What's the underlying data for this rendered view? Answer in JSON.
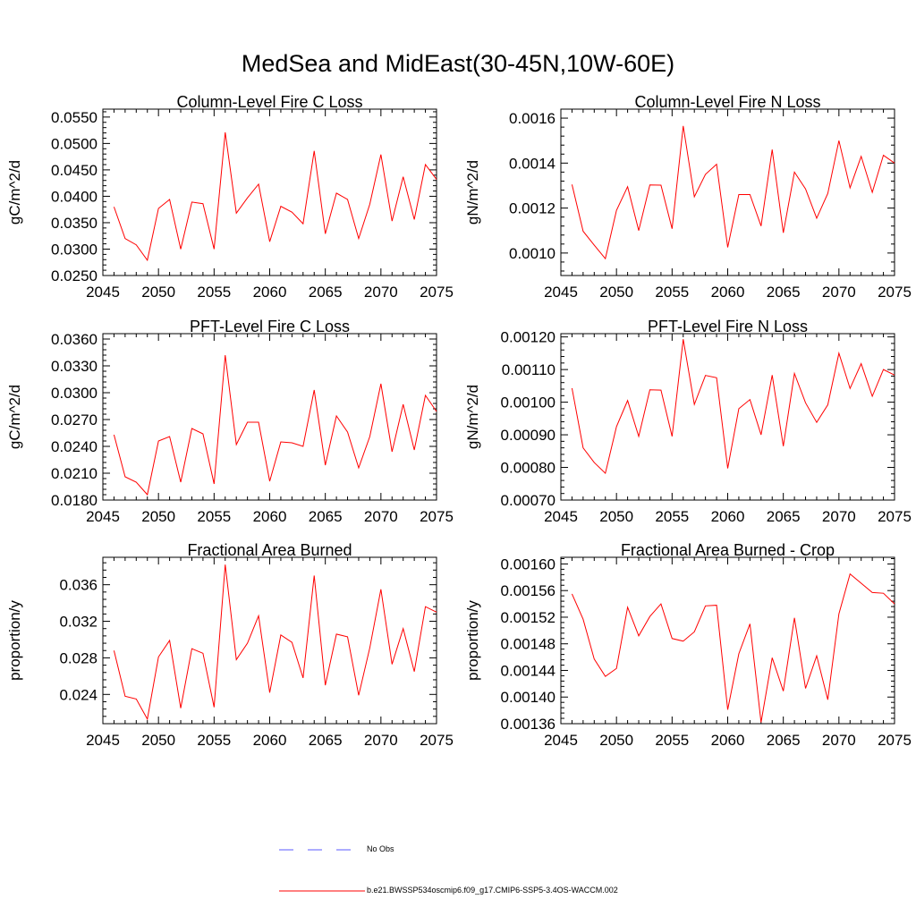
{
  "title": "MedSea and MidEast(30-45N,10W-60E)",
  "colors": {
    "model": "#ff0000",
    "obs": "#5a5aff",
    "axis": "#000000"
  },
  "legend": [
    {
      "label": "No Obs",
      "style": "dashed",
      "color": "#5a5aff"
    },
    {
      "label": "b.e21.BWSSP534oscmip6.f09_g17.CMIP6-SSP5-3.4OS-WACCM.002",
      "style": "solid",
      "color": "#ff0000"
    }
  ],
  "chart_data": [
    {
      "type": "line",
      "title": "Column-Level Fire C Loss",
      "ylabel": "gC/m^2/d",
      "xlim": [
        2045,
        2075
      ],
      "ylim": [
        0.025,
        0.0565
      ],
      "xticks": [
        2045,
        2050,
        2055,
        2060,
        2065,
        2070,
        2075
      ],
      "xtick_labels": [
        "2045",
        "2050",
        "2055",
        "2060",
        "2065",
        "2070",
        "2075"
      ],
      "yticks": [
        0.025,
        0.03,
        0.035,
        0.04,
        0.045,
        0.05,
        0.055
      ],
      "ytick_labels": [
        "0.0250",
        "0.0300",
        "0.0350",
        "0.0400",
        "0.0450",
        "0.0500",
        "0.0550"
      ],
      "series": [
        {
          "name": "b.e21.BWSSP534oscmip6.f09_g17.CMIP6-SSP5-3.4OS-WACCM.002",
          "x": [
            2046,
            2047,
            2048,
            2049,
            2050,
            2051,
            2052,
            2053,
            2054,
            2055,
            2056,
            2057,
            2058,
            2059,
            2060,
            2061,
            2062,
            2063,
            2064,
            2065,
            2066,
            2067,
            2068,
            2069,
            2070,
            2071,
            2072,
            2073,
            2074,
            2075
          ],
          "values": [
            0.038,
            0.032,
            0.0308,
            0.0279,
            0.0377,
            0.0394,
            0.03,
            0.0389,
            0.0386,
            0.03,
            0.0521,
            0.0368,
            0.0397,
            0.0423,
            0.0314,
            0.0381,
            0.037,
            0.0348,
            0.0486,
            0.0329,
            0.0406,
            0.0394,
            0.032,
            0.0385,
            0.0479,
            0.0353,
            0.0437,
            0.0356,
            0.046,
            0.0432
          ]
        }
      ]
    },
    {
      "type": "line",
      "title": "Column-Level Fire N Loss",
      "ylabel": "gN/m^2/d",
      "xlim": [
        2045,
        2075
      ],
      "ylim": [
        0.0009,
        0.00164
      ],
      "xticks": [
        2045,
        2050,
        2055,
        2060,
        2065,
        2070,
        2075
      ],
      "xtick_labels": [
        "2045",
        "2050",
        "2055",
        "2060",
        "2065",
        "2070",
        "2075"
      ],
      "yticks": [
        0.001,
        0.0012,
        0.0014,
        0.0016
      ],
      "ytick_labels": [
        "0.0010",
        "0.0012",
        "0.0014",
        "0.0016"
      ],
      "series": [
        {
          "name": "b.e21.BWSSP534oscmip6.f09_g17.CMIP6-SSP5-3.4OS-WACCM.002",
          "x": [
            2046,
            2047,
            2048,
            2049,
            2050,
            2051,
            2052,
            2053,
            2054,
            2055,
            2056,
            2057,
            2058,
            2059,
            2060,
            2061,
            2062,
            2063,
            2064,
            2065,
            2066,
            2067,
            2068,
            2069,
            2070,
            2071,
            2072,
            2073,
            2074,
            2075
          ],
          "values": [
            0.001305,
            0.001097,
            0.001035,
            0.000975,
            0.00119,
            0.001295,
            0.0011,
            0.001303,
            0.001302,
            0.001108,
            0.001565,
            0.00125,
            0.00135,
            0.001395,
            0.001025,
            0.00126,
            0.00126,
            0.00112,
            0.00146,
            0.00109,
            0.00136,
            0.001285,
            0.001155,
            0.001265,
            0.0015,
            0.00129,
            0.00143,
            0.00127,
            0.001435,
            0.0014
          ]
        }
      ]
    },
    {
      "type": "line",
      "title": "PFT-Level Fire C Loss",
      "ylabel": "gC/m^2/d",
      "xlim": [
        2045,
        2075
      ],
      "ylim": [
        0.018,
        0.0366
      ],
      "xticks": [
        2045,
        2050,
        2055,
        2060,
        2065,
        2070,
        2075
      ],
      "xtick_labels": [
        "2045",
        "2050",
        "2055",
        "2060",
        "2065",
        "2070",
        "2075"
      ],
      "yticks": [
        0.018,
        0.021,
        0.024,
        0.027,
        0.03,
        0.033,
        0.036
      ],
      "ytick_labels": [
        "0.0180",
        "0.0210",
        "0.0240",
        "0.0270",
        "0.0300",
        "0.0330",
        "0.0360"
      ],
      "series": [
        {
          "name": "b.e21.BWSSP534oscmip6.f09_g17.CMIP6-SSP5-3.4OS-WACCM.002",
          "x": [
            2046,
            2047,
            2048,
            2049,
            2050,
            2051,
            2052,
            2053,
            2054,
            2055,
            2056,
            2057,
            2058,
            2059,
            2060,
            2061,
            2062,
            2063,
            2064,
            2065,
            2066,
            2067,
            2068,
            2069,
            2070,
            2071,
            2072,
            2073,
            2074,
            2075
          ],
          "values": [
            0.0253,
            0.0206,
            0.02,
            0.0186,
            0.0246,
            0.0251,
            0.02,
            0.026,
            0.0254,
            0.0198,
            0.0342,
            0.0242,
            0.0267,
            0.0267,
            0.0201,
            0.0245,
            0.0244,
            0.024,
            0.0303,
            0.0219,
            0.0274,
            0.0256,
            0.0216,
            0.0251,
            0.031,
            0.0234,
            0.0287,
            0.0236,
            0.0297,
            0.0279
          ]
        }
      ]
    },
    {
      "type": "line",
      "title": "PFT-Level Fire N Loss",
      "ylabel": "gN/m^2/d",
      "xlim": [
        2045,
        2075
      ],
      "ylim": [
        0.0007,
        0.00121
      ],
      "xticks": [
        2045,
        2050,
        2055,
        2060,
        2065,
        2070,
        2075
      ],
      "xtick_labels": [
        "2045",
        "2050",
        "2055",
        "2060",
        "2065",
        "2070",
        "2075"
      ],
      "yticks": [
        0.0007,
        0.0008,
        0.0009,
        0.001,
        0.0011,
        0.0012
      ],
      "ytick_labels": [
        "0.00070",
        "0.00080",
        "0.00090",
        "0.00100",
        "0.00110",
        "0.00120"
      ],
      "series": [
        {
          "name": "b.e21.BWSSP534oscmip6.f09_g17.CMIP6-SSP5-3.4OS-WACCM.002",
          "x": [
            2046,
            2047,
            2048,
            2049,
            2050,
            2051,
            2052,
            2053,
            2054,
            2055,
            2056,
            2057,
            2058,
            2059,
            2060,
            2061,
            2062,
            2063,
            2064,
            2065,
            2066,
            2067,
            2068,
            2069,
            2070,
            2071,
            2072,
            2073,
            2074,
            2075
          ],
          "values": [
            0.001043,
            0.00086,
            0.000815,
            0.000782,
            0.000925,
            0.001005,
            0.000895,
            0.001038,
            0.001037,
            0.000895,
            0.001193,
            0.000993,
            0.001082,
            0.001075,
            0.000797,
            0.00098,
            0.001008,
            0.0009,
            0.001083,
            0.000865,
            0.001088,
            0.000998,
            0.000938,
            0.000992,
            0.00115,
            0.001042,
            0.001118,
            0.001018,
            0.0011,
            0.001083
          ]
        }
      ]
    },
    {
      "type": "line",
      "title": "Fractional Area Burned",
      "ylabel": "proportion/y",
      "xlim": [
        2045,
        2075
      ],
      "ylim": [
        0.0208,
        0.039
      ],
      "xticks": [
        2045,
        2050,
        2055,
        2060,
        2065,
        2070,
        2075
      ],
      "xtick_labels": [
        "2045",
        "2050",
        "2055",
        "2060",
        "2065",
        "2070",
        "2075"
      ],
      "yticks": [
        0.024,
        0.028,
        0.032,
        0.036
      ],
      "ytick_labels": [
        "0.024",
        "0.028",
        "0.032",
        "0.036"
      ],
      "series": [
        {
          "name": "b.e21.BWSSP534oscmip6.f09_g17.CMIP6-SSP5-3.4OS-WACCM.002",
          "x": [
            2046,
            2047,
            2048,
            2049,
            2050,
            2051,
            2052,
            2053,
            2054,
            2055,
            2056,
            2057,
            2058,
            2059,
            2060,
            2061,
            2062,
            2063,
            2064,
            2065,
            2066,
            2067,
            2068,
            2069,
            2070,
            2071,
            2072,
            2073,
            2074,
            2075
          ],
          "values": [
            0.0288,
            0.0238,
            0.0235,
            0.0213,
            0.0281,
            0.0299,
            0.0225,
            0.029,
            0.0285,
            0.0226,
            0.0382,
            0.0278,
            0.0296,
            0.0326,
            0.0242,
            0.0305,
            0.0297,
            0.0258,
            0.037,
            0.025,
            0.0306,
            0.0303,
            0.0239,
            0.0291,
            0.0355,
            0.0273,
            0.0312,
            0.0265,
            0.0336,
            0.033
          ]
        }
      ]
    },
    {
      "type": "line",
      "title": "Fractional Area Burned - Crop",
      "ylabel": "proportion/y",
      "xlim": [
        2045,
        2075
      ],
      "ylim": [
        0.00136,
        0.00161
      ],
      "xticks": [
        2045,
        2050,
        2055,
        2060,
        2065,
        2070,
        2075
      ],
      "xtick_labels": [
        "2045",
        "2050",
        "2055",
        "2060",
        "2065",
        "2070",
        "2075"
      ],
      "yticks": [
        0.00136,
        0.0014,
        0.00144,
        0.00148,
        0.00152,
        0.00156,
        0.0016
      ],
      "ytick_labels": [
        "0.00136",
        "0.00140",
        "0.00144",
        "0.00148",
        "0.00152",
        "0.00156",
        "0.00160"
      ],
      "series": [
        {
          "name": "b.e21.BWSSP534oscmip6.f09_g17.CMIP6-SSP5-3.4OS-WACCM.002",
          "x": [
            2046,
            2047,
            2048,
            2049,
            2050,
            2051,
            2052,
            2053,
            2054,
            2055,
            2056,
            2057,
            2058,
            2059,
            2060,
            2061,
            2062,
            2063,
            2064,
            2065,
            2066,
            2067,
            2068,
            2069,
            2070,
            2071,
            2072,
            2073,
            2074,
            2075
          ],
          "values": [
            0.001555,
            0.001517,
            0.001457,
            0.001431,
            0.001443,
            0.001535,
            0.001492,
            0.001521,
            0.00154,
            0.001488,
            0.001484,
            0.001498,
            0.001537,
            0.001538,
            0.001381,
            0.001465,
            0.00151,
            0.001362,
            0.001459,
            0.001409,
            0.001519,
            0.001413,
            0.001462,
            0.001396,
            0.001525,
            0.001585,
            0.001571,
            0.001557,
            0.001556,
            0.00154
          ]
        }
      ]
    }
  ]
}
